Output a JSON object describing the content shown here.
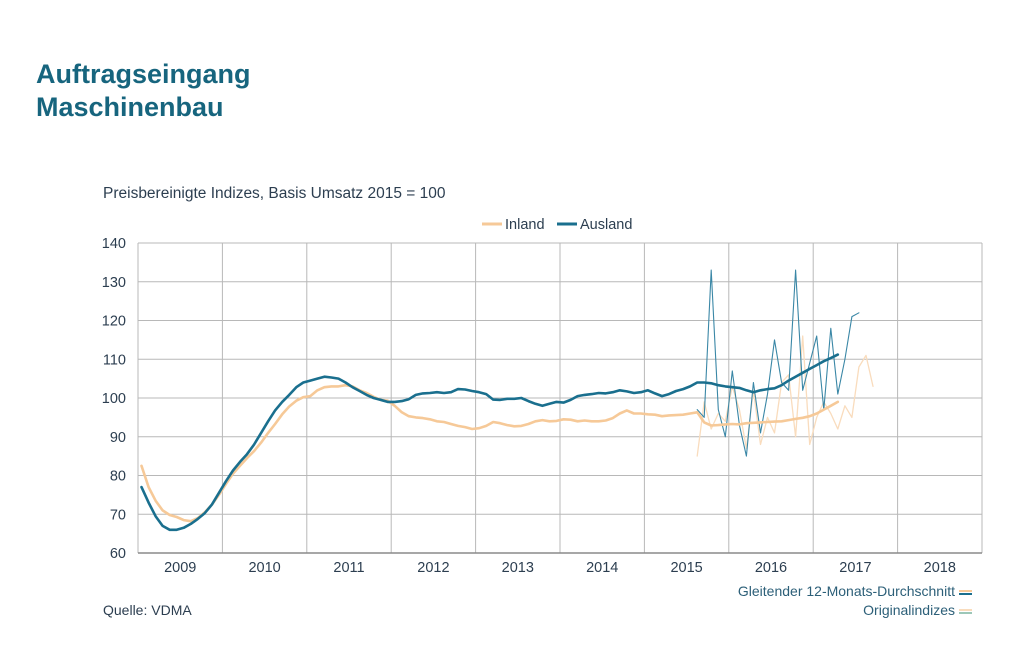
{
  "title_line1": "Auftragseingang",
  "title_line2": "Maschinenbau",
  "subtitle": "Preisbereinigte Indizes, Basis Umsatz 2015 = 100",
  "source": "Quelle: VDMA",
  "notes": {
    "moving_avg": "Gleitender 12-Monats-Durchschnitt",
    "original": "Originalindizes"
  },
  "colors": {
    "inland": "#f6c998",
    "ausland": "#1a6f8e",
    "inland_light": "#f9dcbd",
    "ausland_light": "#3a87a6",
    "grid": "#b8b8b8",
    "axis_text": "#2c3e50"
  },
  "chart_data": {
    "type": "line",
    "x_unit": "month index (0 = Jan 2009)",
    "legend": [
      "Inland",
      "Ausland"
    ],
    "legend_position": "top-center",
    "ylim": [
      60,
      140
    ],
    "yticks": [
      60,
      70,
      80,
      90,
      100,
      110,
      120,
      130,
      140
    ],
    "x_categories": [
      "2009",
      "2010",
      "2011",
      "2012",
      "2013",
      "2014",
      "2015",
      "2016",
      "2017",
      "2018"
    ],
    "grid": true,
    "series": [
      {
        "name": "Inland",
        "kind": "moving-average",
        "x_start": 0,
        "values": [
          82.5,
          77,
          73.5,
          71,
          69.8,
          69.3,
          68.5,
          68.2,
          69,
          70.5,
          72.5,
          75,
          77.8,
          80.5,
          82.5,
          84.5,
          86.3,
          88.5,
          91,
          93.3,
          95.8,
          97.8,
          99.3,
          100.2,
          100.5,
          102,
          102.8,
          103,
          103,
          103.3,
          103,
          102,
          101.3,
          100.3,
          99.5,
          99.3,
          98,
          96.3,
          95.3,
          95,
          94.8,
          94.5,
          94,
          93.8,
          93.3,
          92.8,
          92.5,
          92,
          92.2,
          92.8,
          93.8,
          93.5,
          93,
          92.7,
          92.8,
          93.3,
          94,
          94.3,
          94,
          94.1,
          94.5,
          94.4,
          94,
          94.2,
          94,
          94,
          94.2,
          94.8,
          96,
          96.8,
          96,
          96,
          95.8,
          95.7,
          95.3,
          95.5,
          95.6,
          95.7,
          96,
          96.3,
          93.7,
          92.9,
          93,
          93.2,
          93.3,
          93.2,
          93.5,
          93.6,
          93.7,
          93.8,
          93.9,
          94,
          94.3,
          94.6,
          94.9,
          95.3,
          96,
          97,
          98,
          99
        ]
      },
      {
        "name": "Ausland",
        "kind": "moving-average",
        "x_start": 0,
        "values": [
          77,
          73,
          69.5,
          67,
          66,
          66,
          66.5,
          67.5,
          68.8,
          70.3,
          72.5,
          75.5,
          78.5,
          81.3,
          83.5,
          85.5,
          88,
          91,
          94,
          96.8,
          99,
          100.8,
          102.8,
          104,
          104.5,
          105,
          105.5,
          105.3,
          105,
          104,
          102.8,
          101.8,
          100.8,
          100,
          99.5,
          99,
          99,
          99.2,
          99.7,
          100.8,
          101.2,
          101.3,
          101.5,
          101.3,
          101.5,
          102.3,
          102.2,
          101.8,
          101.5,
          101,
          99.6,
          99.5,
          99.8,
          99.8,
          100,
          99.2,
          98.5,
          98,
          98.5,
          99,
          98.8,
          99.5,
          100.5,
          100.8,
          101,
          101.3,
          101.2,
          101.5,
          102,
          101.7,
          101.3,
          101.5,
          102,
          101.2,
          100.5,
          101,
          101.8,
          102.3,
          103,
          104,
          104,
          103.8,
          103.3,
          103,
          102.8,
          102.6,
          102,
          101.5,
          102,
          102.3,
          102.5,
          103.3,
          104.5,
          105.5,
          106.5,
          107.5,
          108.5,
          109.5,
          110.3,
          111.2
        ]
      },
      {
        "name": "Inland",
        "kind": "original",
        "x_start": 79,
        "values": [
          85,
          99,
          92,
          96,
          94,
          103,
          97,
          87,
          102,
          88,
          95,
          91,
          104,
          106,
          90,
          116,
          88,
          95,
          99,
          96,
          92,
          98,
          95,
          108,
          111,
          103
        ]
      },
      {
        "name": "Ausland",
        "kind": "original",
        "x_start": 79,
        "values": [
          97,
          95,
          133,
          97,
          90,
          107,
          93,
          85,
          104,
          91,
          101,
          115,
          104,
          102,
          133,
          102,
          109,
          116,
          97,
          118,
          101,
          110,
          121,
          122
        ]
      }
    ]
  }
}
